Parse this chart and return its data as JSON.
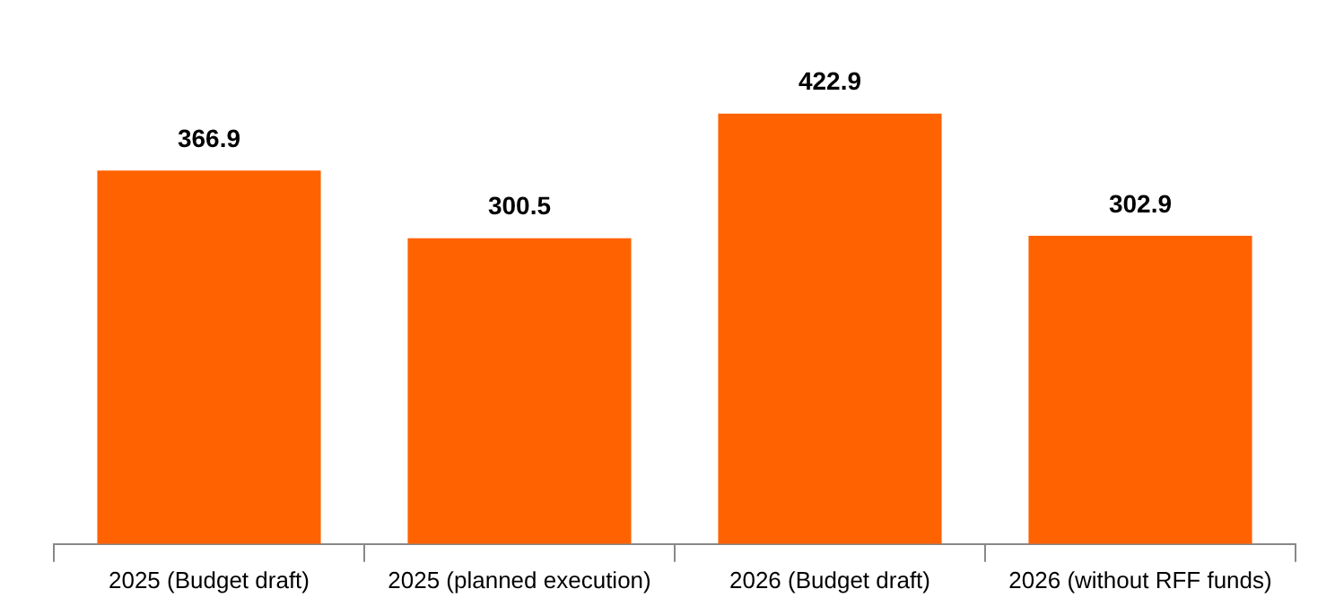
{
  "chart_data": {
    "type": "bar",
    "categories": [
      "2025 (Budget draft)",
      "2025 (planned execution)",
      "2026 (Budget draft)",
      "2026 (without RFF funds)"
    ],
    "values": [
      366.9,
      300.5,
      422.9,
      302.9
    ],
    "color": "#ff6200",
    "relative": false,
    "data_labels": true,
    "grid": false,
    "legend": false
  }
}
